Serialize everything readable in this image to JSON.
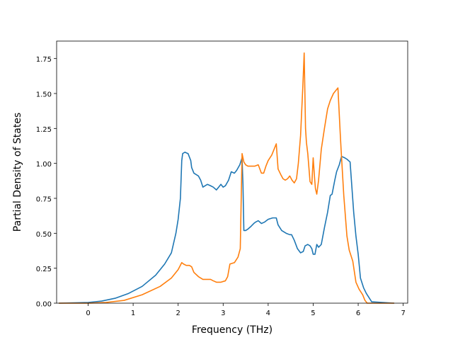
{
  "chart_data": {
    "type": "line",
    "title": "",
    "xlabel": "Frequency (THz)",
    "ylabel": "Partial Density of States",
    "xlim": [
      -0.7,
      7.1
    ],
    "ylim": [
      0,
      1.875
    ],
    "xticks": [
      0,
      1,
      2,
      3,
      4,
      5,
      6,
      7
    ],
    "xtick_labels": [
      "0",
      "1",
      "2",
      "3",
      "4",
      "5",
      "6",
      "7"
    ],
    "yticks": [
      0,
      0.25,
      0.5,
      0.75,
      1.0,
      1.25,
      1.5,
      1.75
    ],
    "ytick_labels": [
      "0.00",
      "0.25",
      "0.50",
      "0.75",
      "1.00",
      "1.25",
      "1.50",
      "1.75"
    ],
    "grid": false,
    "legend": false,
    "series": [
      {
        "color": "#1f77b4",
        "x": [
          -0.65,
          0.0,
          0.3,
          0.6,
          0.9,
          1.2,
          1.5,
          1.7,
          1.85,
          1.95,
          2.0,
          2.05,
          2.08,
          2.1,
          2.15,
          2.22,
          2.28,
          2.3,
          2.35,
          2.45,
          2.5,
          2.55,
          2.6,
          2.65,
          2.72,
          2.78,
          2.85,
          2.9,
          2.95,
          3.0,
          3.05,
          3.12,
          3.18,
          3.25,
          3.3,
          3.37,
          3.42,
          3.44,
          3.46,
          3.5,
          3.55,
          3.62,
          3.68,
          3.72,
          3.78,
          3.85,
          3.92,
          4.0,
          4.1,
          4.18,
          4.22,
          4.3,
          4.4,
          4.48,
          4.52,
          4.58,
          4.65,
          4.72,
          4.78,
          4.82,
          4.88,
          4.93,
          4.97,
          5.0,
          5.04,
          5.08,
          5.12,
          5.18,
          5.25,
          5.32,
          5.38,
          5.42,
          5.48,
          5.52,
          5.58,
          5.63,
          5.7,
          5.75,
          5.82,
          5.9,
          5.95,
          6.0,
          6.05,
          6.12,
          6.18,
          6.3,
          6.8
        ],
        "y": [
          0.0,
          0.005,
          0.015,
          0.035,
          0.07,
          0.12,
          0.2,
          0.28,
          0.36,
          0.5,
          0.6,
          0.75,
          1.02,
          1.07,
          1.08,
          1.07,
          1.02,
          0.97,
          0.93,
          0.91,
          0.88,
          0.83,
          0.84,
          0.85,
          0.84,
          0.83,
          0.81,
          0.83,
          0.85,
          0.83,
          0.84,
          0.88,
          0.94,
          0.93,
          0.95,
          0.99,
          1.04,
          0.85,
          0.52,
          0.52,
          0.53,
          0.55,
          0.57,
          0.58,
          0.59,
          0.57,
          0.58,
          0.6,
          0.61,
          0.61,
          0.56,
          0.52,
          0.5,
          0.49,
          0.49,
          0.45,
          0.39,
          0.36,
          0.37,
          0.41,
          0.42,
          0.41,
          0.39,
          0.35,
          0.35,
          0.42,
          0.4,
          0.42,
          0.54,
          0.65,
          0.77,
          0.78,
          0.88,
          0.94,
          0.99,
          1.05,
          1.04,
          1.03,
          1.01,
          0.65,
          0.48,
          0.35,
          0.18,
          0.11,
          0.07,
          0.01,
          0.0
        ]
      },
      {
        "color": "#ff7f0e",
        "x": [
          -0.65,
          0.0,
          0.4,
          0.8,
          1.2,
          1.6,
          1.85,
          2.0,
          2.08,
          2.12,
          2.18,
          2.25,
          2.3,
          2.35,
          2.45,
          2.55,
          2.72,
          2.78,
          2.85,
          2.95,
          3.05,
          3.1,
          3.15,
          3.25,
          3.33,
          3.38,
          3.42,
          3.46,
          3.5,
          3.55,
          3.6,
          3.7,
          3.78,
          3.85,
          3.9,
          3.95,
          4.0,
          4.08,
          4.13,
          4.18,
          4.22,
          4.28,
          4.33,
          4.38,
          4.43,
          4.48,
          4.53,
          4.58,
          4.63,
          4.67,
          4.72,
          4.77,
          4.8,
          4.83,
          4.85,
          4.88,
          4.93,
          4.97,
          5.0,
          5.03,
          5.05,
          5.08,
          5.12,
          5.18,
          5.25,
          5.32,
          5.38,
          5.45,
          5.5,
          5.55,
          5.6,
          5.62,
          5.68,
          5.75,
          5.8,
          5.88,
          5.95,
          6.02,
          6.1,
          6.15,
          6.2,
          6.25,
          6.8
        ],
        "y": [
          0.0,
          0.0,
          0.005,
          0.02,
          0.06,
          0.12,
          0.18,
          0.24,
          0.29,
          0.28,
          0.27,
          0.27,
          0.26,
          0.22,
          0.19,
          0.17,
          0.17,
          0.16,
          0.15,
          0.15,
          0.16,
          0.19,
          0.28,
          0.29,
          0.33,
          0.39,
          1.07,
          1.01,
          0.99,
          0.98,
          0.98,
          0.98,
          0.99,
          0.93,
          0.93,
          0.98,
          1.02,
          1.06,
          1.1,
          1.14,
          0.96,
          0.92,
          0.89,
          0.88,
          0.89,
          0.91,
          0.88,
          0.86,
          0.89,
          1.0,
          1.2,
          1.55,
          1.79,
          1.25,
          1.15,
          1.07,
          0.87,
          0.85,
          1.04,
          0.9,
          0.82,
          0.78,
          0.88,
          1.1,
          1.25,
          1.39,
          1.45,
          1.5,
          1.52,
          1.54,
          1.22,
          1.1,
          0.77,
          0.48,
          0.38,
          0.3,
          0.15,
          0.1,
          0.06,
          0.02,
          0.0,
          0.0,
          0.0
        ]
      }
    ]
  }
}
